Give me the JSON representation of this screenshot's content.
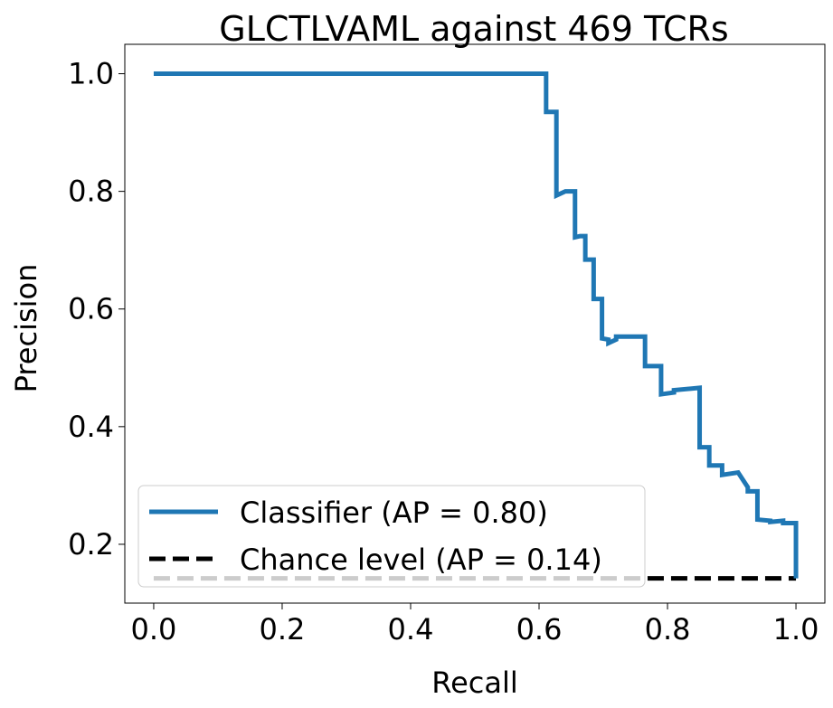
{
  "chart_data": {
    "type": "line",
    "title": "GLCTLVAML against 469 TCRs",
    "xlabel": "Recall",
    "ylabel": "Precision",
    "xlim": [
      -0.045,
      1.045
    ],
    "ylim": [
      0.1,
      1.05
    ],
    "xticks": [
      0.0,
      0.2,
      0.4,
      0.6,
      0.8,
      1.0
    ],
    "xtick_labels": [
      "0.0",
      "0.2",
      "0.4",
      "0.6",
      "0.8",
      "1.0"
    ],
    "yticks": [
      0.2,
      0.4,
      0.6,
      0.8,
      1.0
    ],
    "ytick_labels": [
      "0.2",
      "0.4",
      "0.6",
      "0.8",
      "1.0"
    ],
    "grid": false,
    "legend_position": "lower-left",
    "series": [
      {
        "name": "Classifier (AP = 0.80)",
        "style": "step",
        "color": "#1f77b4",
        "x": [
          0.0,
          0.0,
          0.611,
          0.611,
          0.627,
          0.627,
          0.641,
          0.641,
          0.656,
          0.656,
          0.664,
          0.664,
          0.672,
          0.672,
          0.685,
          0.685,
          0.698,
          0.698,
          0.708,
          0.708,
          0.72,
          0.72,
          0.765,
          0.765,
          0.79,
          0.79,
          0.81,
          0.81,
          0.85,
          0.85,
          0.865,
          0.865,
          0.885,
          0.885,
          0.91,
          0.91,
          0.925,
          0.925,
          0.94,
          0.94,
          0.96,
          0.96,
          0.98,
          0.98,
          1.0,
          1.0
        ],
        "y": [
          1.0,
          1.0,
          1.0,
          0.935,
          0.935,
          0.793,
          0.8,
          0.8,
          0.8,
          0.722,
          0.724,
          0.724,
          0.724,
          0.684,
          0.684,
          0.617,
          0.617,
          0.55,
          0.548,
          0.542,
          0.548,
          0.553,
          0.553,
          0.503,
          0.503,
          0.455,
          0.458,
          0.462,
          0.466,
          0.365,
          0.365,
          0.334,
          0.334,
          0.318,
          0.322,
          0.322,
          0.297,
          0.29,
          0.29,
          0.242,
          0.24,
          0.238,
          0.24,
          0.236,
          0.236,
          0.142
        ]
      },
      {
        "name": "Chance level (AP = 0.14)",
        "style": "dashed",
        "color": "#000000",
        "x": [
          0.0,
          1.0
        ],
        "y": [
          0.142,
          0.142
        ]
      }
    ]
  }
}
